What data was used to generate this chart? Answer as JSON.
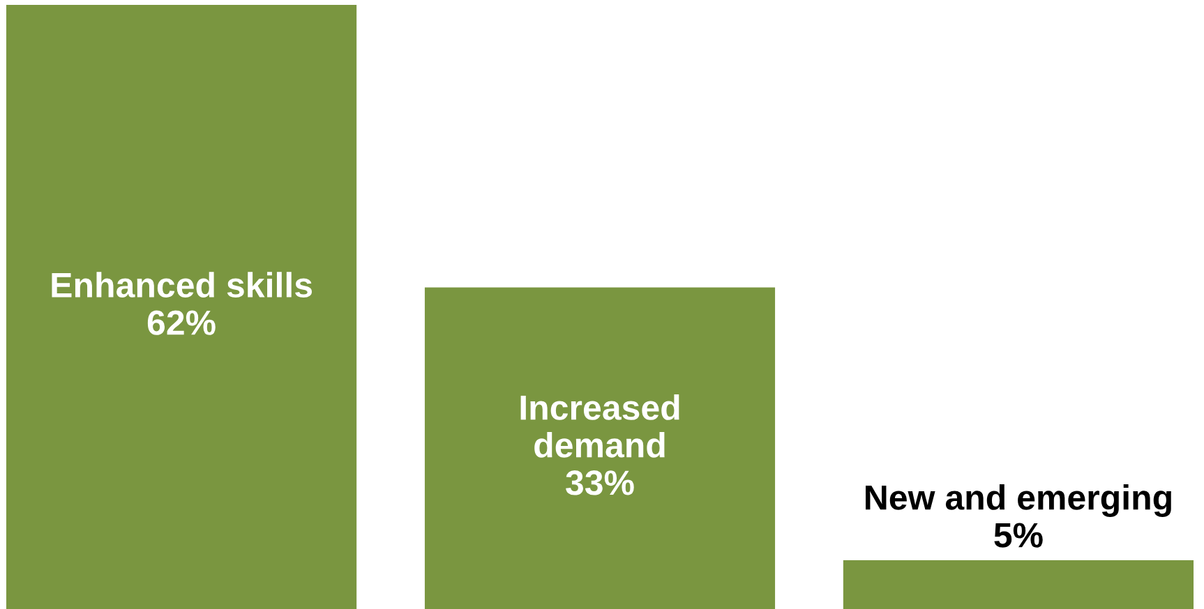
{
  "chart_data": {
    "type": "bar",
    "categories": [
      "Enhanced skills",
      "Increased demand",
      "New and emerging"
    ],
    "values": [
      62,
      33,
      5
    ],
    "value_labels": [
      "62%",
      "33%",
      "5%"
    ],
    "color": "#7a9640",
    "tick_labels": false
  }
}
